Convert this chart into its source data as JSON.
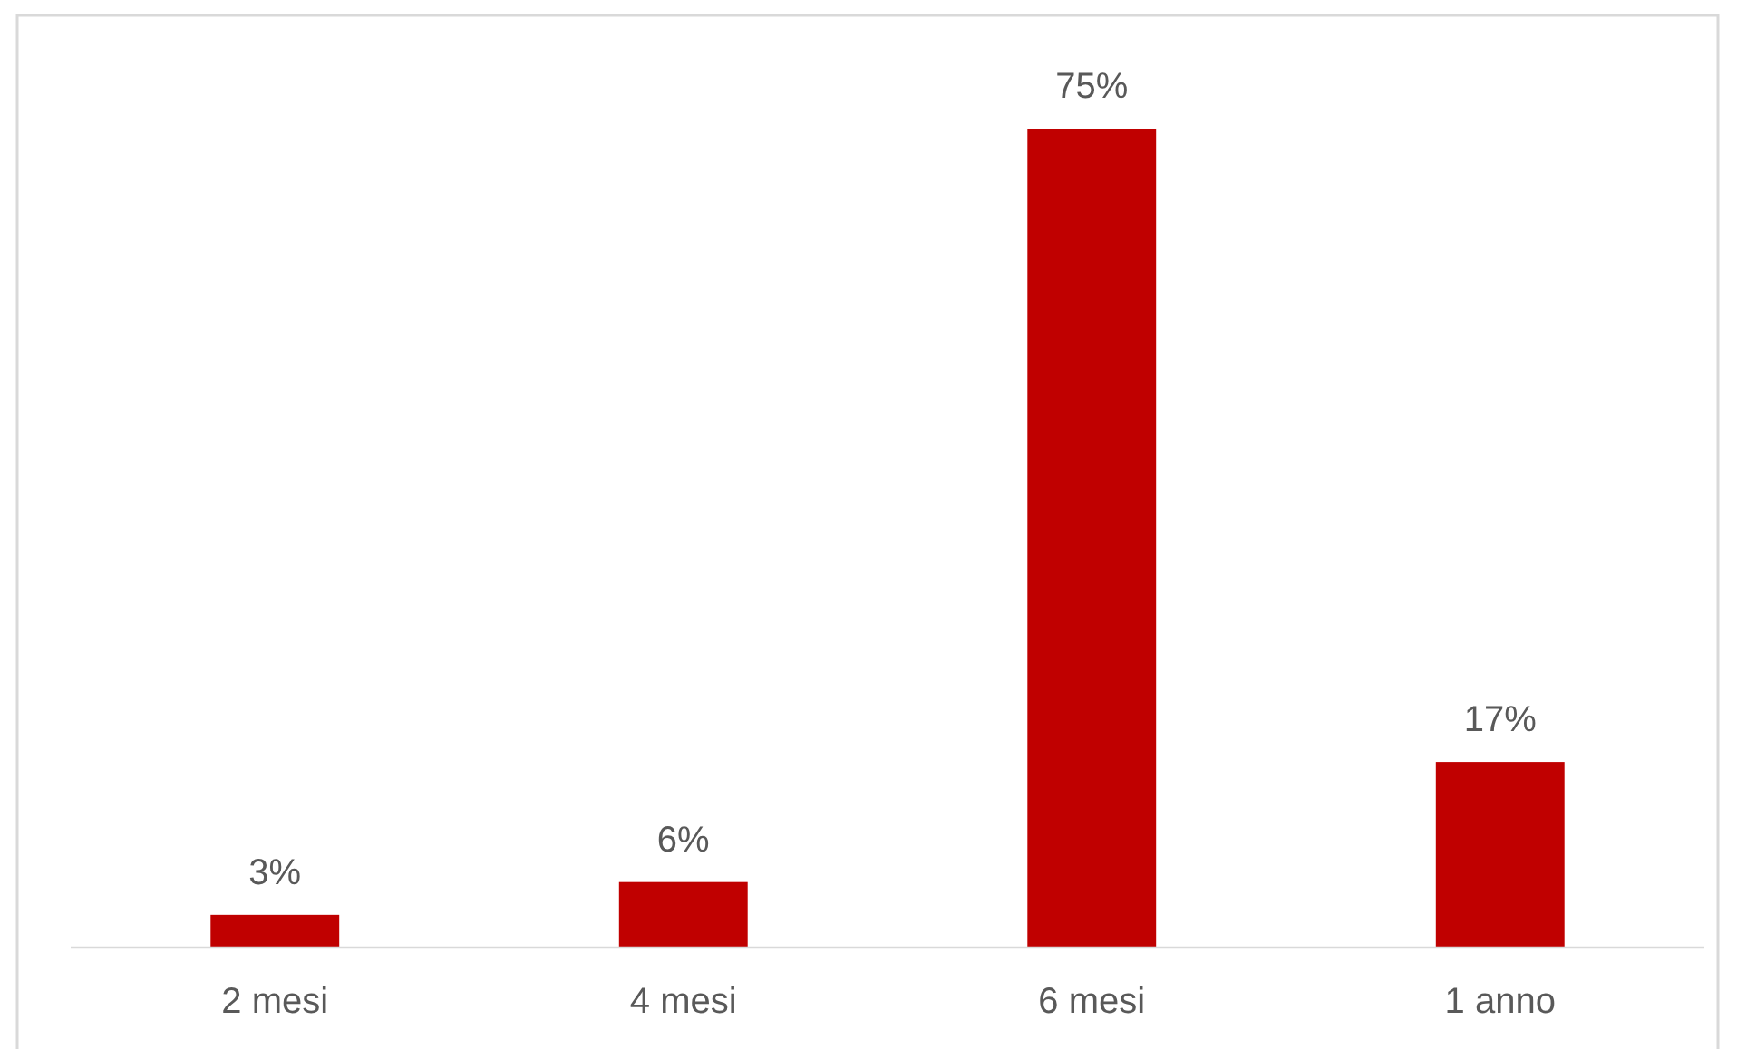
{
  "chart_data": {
    "type": "bar",
    "categories": [
      "2 mesi",
      "4 mesi",
      "6 mesi",
      "1 anno"
    ],
    "values": [
      3,
      6,
      75,
      17
    ],
    "color": "#c00000",
    "value_labels": [
      "3%",
      "6%",
      "75%",
      "17%"
    ]
  }
}
